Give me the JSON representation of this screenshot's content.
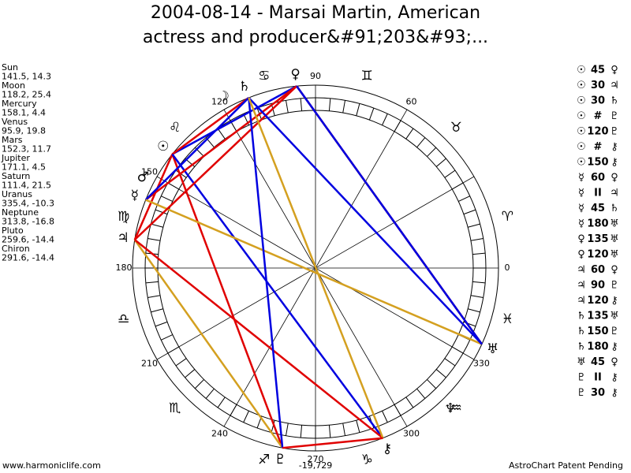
{
  "title": [
    "2004-08-14 - Marsai Martin, American",
    "actress and producer&#91;203&#93;..."
  ],
  "planets": [
    {
      "name": "Sun",
      "glyph": "☉",
      "coords": "141.5, 14.3"
    },
    {
      "name": "Moon",
      "glyph": "☽",
      "coords": "118.2, 25.4"
    },
    {
      "name": "Mercury",
      "glyph": "☿",
      "coords": "158.1, 4.4"
    },
    {
      "name": "Venus",
      "glyph": "♀",
      "coords": "95.9, 19.8"
    },
    {
      "name": "Mars",
      "glyph": "♂",
      "coords": "152.3, 11.7"
    },
    {
      "name": "Jupiter",
      "glyph": "♃",
      "coords": "171.1, 4.5"
    },
    {
      "name": "Saturn",
      "glyph": "♄",
      "coords": "111.4, 21.5"
    },
    {
      "name": "Uranus",
      "glyph": "♅",
      "coords": "335.4, -10.3"
    },
    {
      "name": "Neptune",
      "glyph": "♆",
      "coords": "313.8, -16.8"
    },
    {
      "name": "Pluto",
      "glyph": "♇",
      "coords": "259.6, -14.4"
    },
    {
      "name": "Chiron",
      "glyph": "⚷",
      "coords": "291.6, -14.4"
    }
  ],
  "aspects": [
    {
      "from": "☉",
      "aspect": "45",
      "to": "♀"
    },
    {
      "from": "☉",
      "aspect": "30",
      "to": "♃"
    },
    {
      "from": "☉",
      "aspect": "30",
      "to": "♄"
    },
    {
      "from": "☉",
      "aspect": "#",
      "to": "♇"
    },
    {
      "from": "☉",
      "aspect": "120",
      "to": "♇"
    },
    {
      "from": "☉",
      "aspect": "#",
      "to": "⚷"
    },
    {
      "from": "☉",
      "aspect": "150",
      "to": "⚷"
    },
    {
      "from": "☿",
      "aspect": "60",
      "to": "♀"
    },
    {
      "from": "☿",
      "aspect": "II",
      "to": "♃"
    },
    {
      "from": "☿",
      "aspect": "45",
      "to": "♄"
    },
    {
      "from": "☿",
      "aspect": "180",
      "to": "♅"
    },
    {
      "from": "♀",
      "aspect": "135",
      "to": "♅"
    },
    {
      "from": "♀",
      "aspect": "120",
      "to": "♅"
    },
    {
      "from": "♃",
      "aspect": "60",
      "to": "♀"
    },
    {
      "from": "♃",
      "aspect": "90",
      "to": "♇"
    },
    {
      "from": "♃",
      "aspect": "120",
      "to": "⚷"
    },
    {
      "from": "♄",
      "aspect": "135",
      "to": "♅"
    },
    {
      "from": "♄",
      "aspect": "150",
      "to": "♇"
    },
    {
      "from": "♄",
      "aspect": "180",
      "to": "⚷"
    },
    {
      "from": "♅",
      "aspect": "45",
      "to": "♀"
    },
    {
      "from": "♇",
      "aspect": "II",
      "to": "⚷"
    },
    {
      "from": "♇",
      "aspect": "30",
      "to": "⚷"
    }
  ],
  "signs": [
    "♈",
    "♉",
    "♊",
    "♋",
    "♌",
    "♍",
    "♎",
    "♏",
    "♐",
    "♑",
    "♒",
    "♓"
  ],
  "degree_labels": [
    0,
    60,
    90,
    120,
    150,
    180,
    210,
    240,
    270,
    300,
    330
  ],
  "bottom_value": "-19,729",
  "footer_left": "www.harmoniclife.com",
  "footer_right": "AstroChart Patent Pending"
}
